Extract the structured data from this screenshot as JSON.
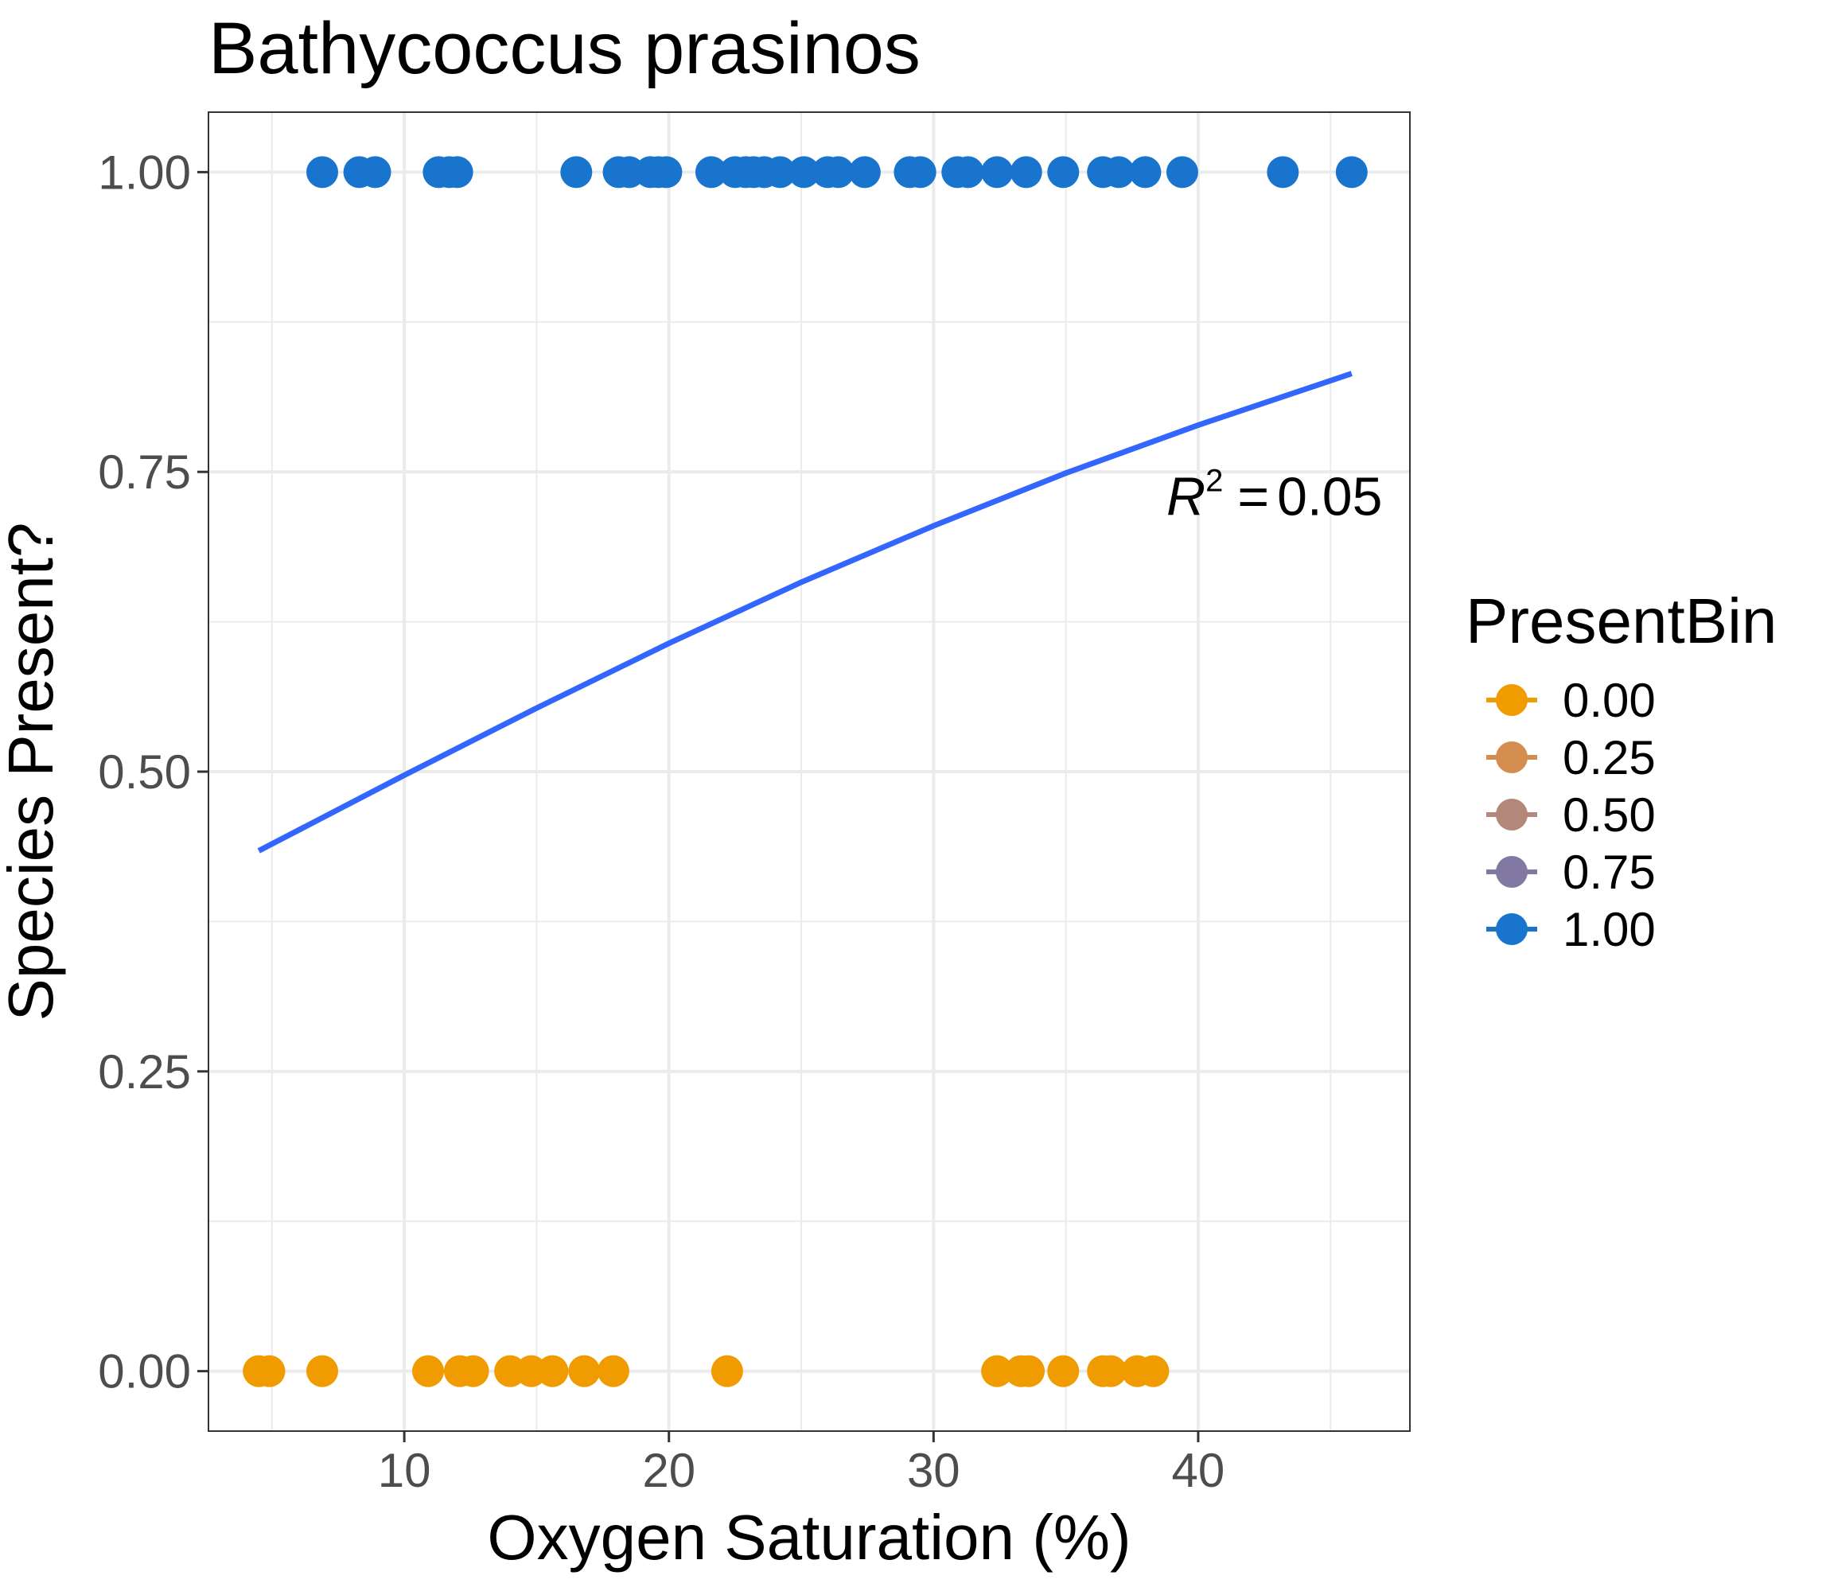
{
  "chart_data": {
    "type": "scatter",
    "title": "Bathycoccus prasinos",
    "xlabel": "Oxygen Saturation (%)",
    "ylabel": "Species Present?",
    "xlim": [
      2.6,
      48
    ],
    "ylim": [
      -0.05,
      1.05
    ],
    "x_ticks": [
      10,
      20,
      30,
      40
    ],
    "x_tick_labels": [
      "10",
      "20",
      "30",
      "40"
    ],
    "y_ticks": [
      0,
      0.25,
      0.5,
      0.75,
      1.0
    ],
    "y_tick_labels": [
      "0.00",
      "0.25",
      "0.50",
      "0.75",
      "1.00"
    ],
    "grid": true,
    "legend": {
      "title": "PresentBin",
      "position": "right",
      "entries": [
        {
          "label": "0.00",
          "color": "#F09B00"
        },
        {
          "label": "0.25",
          "color": "#D38D4E"
        },
        {
          "label": "0.50",
          "color": "#B3877A"
        },
        {
          "label": "0.75",
          "color": "#8179A4"
        },
        {
          "label": "1.00",
          "color": "#1874CD"
        }
      ]
    },
    "series": [
      {
        "name": "0.00",
        "color": "#F09B00",
        "y": 0,
        "x": [
          4.5,
          4.9,
          6.9,
          10.9,
          12.1,
          12.6,
          14.0,
          14.8,
          15.6,
          16.8,
          17.9,
          22.2,
          32.4,
          33.3,
          33.6,
          34.9,
          36.4,
          36.7,
          37.7,
          38.3
        ]
      },
      {
        "name": "1.00",
        "color": "#1874CD",
        "y": 1,
        "x": [
          6.9,
          8.3,
          8.9,
          11.3,
          11.7,
          12.0,
          16.5,
          18.1,
          18.5,
          19.3,
          19.6,
          19.9,
          21.6,
          22.5,
          22.9,
          23.2,
          23.6,
          24.2,
          25.1,
          26.0,
          26.4,
          27.4,
          29.1,
          29.5,
          30.9,
          31.3,
          32.4,
          33.5,
          34.9,
          36.4,
          37.0,
          38.0,
          39.4,
          43.2,
          45.8
        ]
      }
    ],
    "fit_line": {
      "color": "#3366FF",
      "x": [
        4.5,
        10,
        15,
        20,
        25,
        30,
        35,
        40,
        45.8
      ],
      "y": [
        0.434,
        0.497,
        0.553,
        0.607,
        0.658,
        0.705,
        0.749,
        0.789,
        0.832
      ]
    },
    "annotation": {
      "r_symbol": "R",
      "superscript": "2",
      "equals": "=",
      "value": "0.05",
      "x": 38.8,
      "y": 0.73
    }
  }
}
